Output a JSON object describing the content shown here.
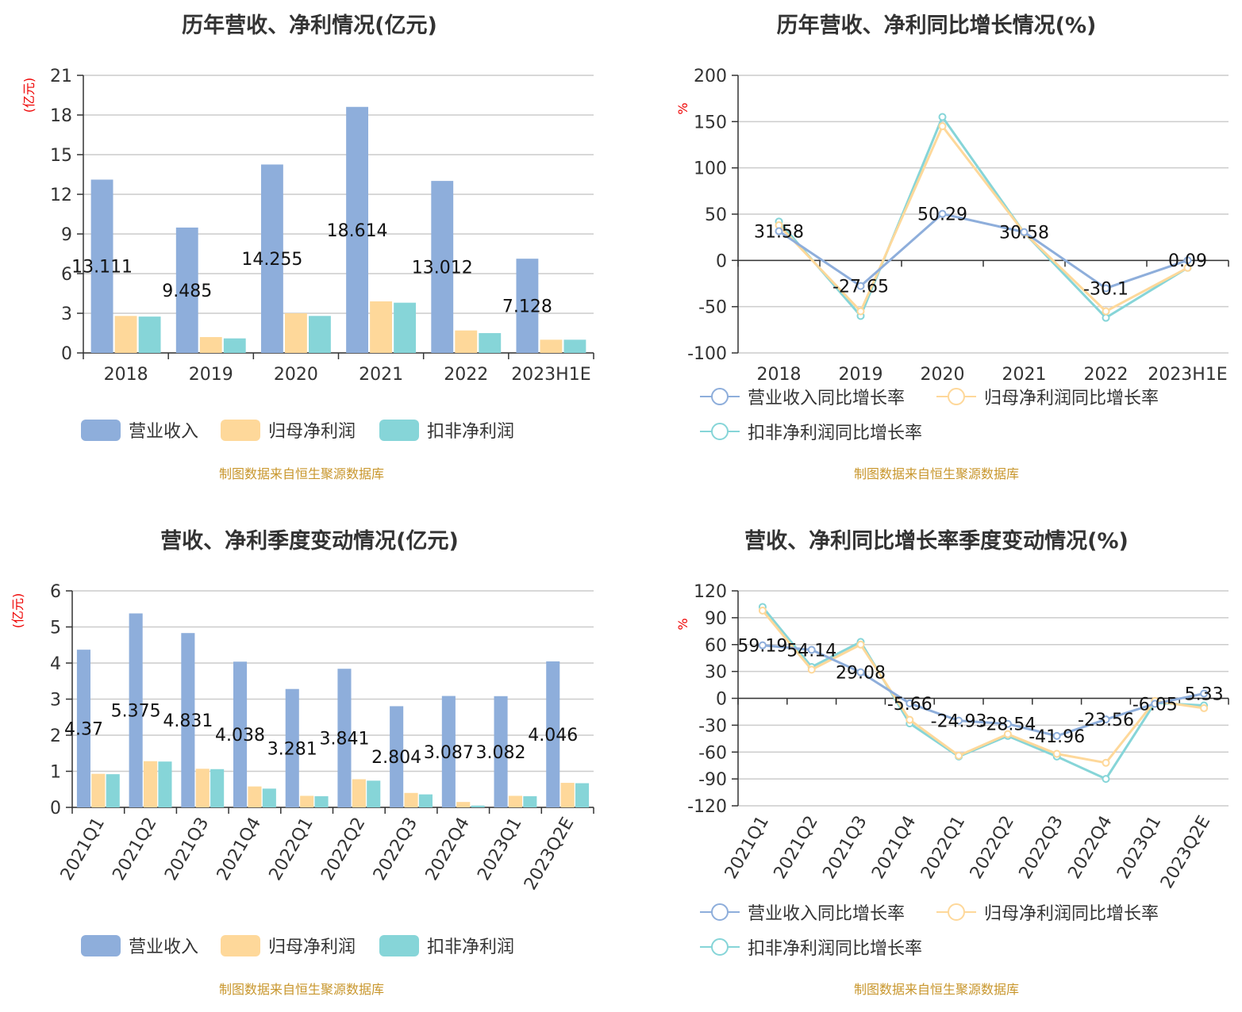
{
  "source_note": "制图数据来自恒生聚源数据库",
  "chart_data": [
    {
      "type": "bar",
      "title": "历年营收、净利情况(亿元)",
      "ylabel": "(亿元)",
      "ylim": [
        0,
        21
      ],
      "yticks": [
        0,
        3,
        6,
        9,
        12,
        15,
        18,
        21
      ],
      "categories": [
        "2018",
        "2019",
        "2020",
        "2021",
        "2022",
        "2023H1E"
      ],
      "series": [
        {
          "name": "营业收入",
          "color": "#8eaedb",
          "values": [
            13.111,
            9.485,
            14.255,
            18.614,
            13.012,
            7.128
          ],
          "labels": [
            "13.111",
            "9.485",
            "14.255",
            "18.614",
            "13.012",
            "7.128"
          ]
        },
        {
          "name": "归母净利润",
          "color": "#fed89a",
          "values": [
            2.8,
            1.2,
            3.0,
            3.9,
            1.7,
            1.0
          ]
        },
        {
          "name": "扣非净利润",
          "color": "#86d5d8",
          "values": [
            2.75,
            1.1,
            2.8,
            3.8,
            1.5,
            1.0
          ]
        }
      ],
      "legend": "bottom"
    },
    {
      "type": "line",
      "title": "历年营收、净利同比增长情况(%)",
      "ylabel": "%",
      "ylim": [
        -100,
        200
      ],
      "yticks": [
        -100,
        -50,
        0,
        50,
        100,
        150,
        200
      ],
      "categories": [
        "2018",
        "2019",
        "2020",
        "2021",
        "2022",
        "2023H1E"
      ],
      "series": [
        {
          "name": "营业收入同比增长率",
          "color": "#8eaedb",
          "values": [
            31.58,
            -27.65,
            50.29,
            30.58,
            -30.1,
            0.09
          ],
          "labels": [
            "31.58",
            "-27.65",
            "50.29",
            "30.58",
            "-30.1",
            "0.09"
          ]
        },
        {
          "name": "归母净利润同比增长率",
          "color": "#fed89a",
          "values": [
            38,
            -55,
            145,
            30,
            -55,
            -8
          ]
        },
        {
          "name": "扣非净利润同比增长率",
          "color": "#86d5d8",
          "values": [
            42,
            -60,
            155,
            30,
            -62,
            -8
          ]
        }
      ],
      "legend": "bottom"
    },
    {
      "type": "bar",
      "title": "营收、净利季度变动情况(亿元)",
      "ylabel": "(亿元)",
      "ylim": [
        0,
        6
      ],
      "yticks": [
        0,
        1,
        2,
        3,
        4,
        5,
        6
      ],
      "categories": [
        "2021Q1",
        "2021Q2",
        "2021Q3",
        "2021Q4",
        "2022Q1",
        "2022Q2",
        "2022Q3",
        "2022Q4",
        "2023Q1",
        "2023Q2E"
      ],
      "series": [
        {
          "name": "营业收入",
          "color": "#8eaedb",
          "values": [
            4.37,
            5.375,
            4.831,
            4.038,
            3.281,
            3.841,
            2.804,
            3.087,
            3.082,
            4.046
          ],
          "labels": [
            "4.37",
            "5.375",
            "4.831",
            "4.038",
            "3.281",
            "3.841",
            "2.804",
            "3.087",
            "3.082",
            "4.046"
          ]
        },
        {
          "name": "归母净利润",
          "color": "#fed89a",
          "values": [
            0.93,
            1.28,
            1.07,
            0.58,
            0.32,
            0.78,
            0.4,
            0.15,
            0.32,
            0.68
          ]
        },
        {
          "name": "扣非净利润",
          "color": "#86d5d8",
          "values": [
            0.92,
            1.27,
            1.06,
            0.52,
            0.31,
            0.74,
            0.36,
            0.05,
            0.31,
            0.67
          ]
        }
      ],
      "legend": "bottom"
    },
    {
      "type": "line",
      "title": "营收、净利同比增长率季度变动情况(%)",
      "ylabel": "%",
      "ylim": [
        -120,
        120
      ],
      "yticks": [
        -120,
        -90,
        -60,
        -30,
        0,
        30,
        60,
        90,
        120
      ],
      "categories": [
        "2021Q1",
        "2021Q2",
        "2021Q3",
        "2021Q4",
        "2022Q1",
        "2022Q2",
        "2022Q3",
        "2022Q4",
        "2023Q1",
        "2023Q2E"
      ],
      "series": [
        {
          "name": "营业收入同比增长率",
          "color": "#8eaedb",
          "values": [
            59.19,
            54.14,
            29.08,
            -5.66,
            -24.93,
            -28.54,
            -41.96,
            -23.56,
            -6.05,
            5.33
          ],
          "labels": [
            "59.19",
            "54.14",
            "29.08",
            "-5.66",
            "-24.93",
            "-28.54",
            "-41.96",
            "-23.56",
            "-6.05",
            "5.33"
          ]
        },
        {
          "name": "归母净利润同比增长率",
          "color": "#fed89a",
          "values": [
            98,
            32,
            60,
            -24,
            -64,
            -40,
            -62,
            -72,
            -3,
            -11
          ]
        },
        {
          "name": "扣非净利润同比增长率",
          "color": "#86d5d8",
          "values": [
            102,
            35,
            63,
            -28,
            -65,
            -42,
            -65,
            -90,
            -5,
            -8
          ]
        }
      ],
      "legend": "bottom"
    }
  ]
}
